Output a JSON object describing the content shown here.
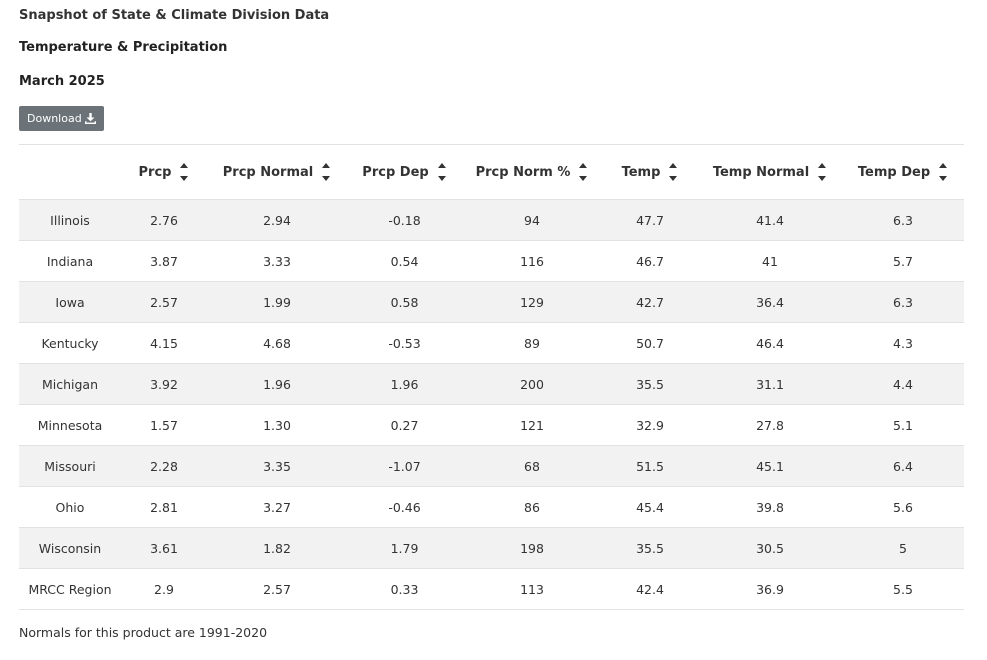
{
  "header": {
    "title": "Snapshot of State & Climate Division Data",
    "subtitle": "Temperature & Precipitation",
    "period": "March 2025"
  },
  "toolbar": {
    "download_label": "Download",
    "download_icon": "download-icon"
  },
  "table": {
    "columns": [
      "",
      "Prcp",
      "Prcp Normal",
      "Prcp Dep",
      "Prcp Norm %",
      "Temp",
      "Temp Normal",
      "Temp Dep"
    ],
    "rows": [
      [
        "Illinois",
        "2.76",
        "2.94",
        "-0.18",
        "94",
        "47.7",
        "41.4",
        "6.3"
      ],
      [
        "Indiana",
        "3.87",
        "3.33",
        "0.54",
        "116",
        "46.7",
        "41",
        "5.7"
      ],
      [
        "Iowa",
        "2.57",
        "1.99",
        "0.58",
        "129",
        "42.7",
        "36.4",
        "6.3"
      ],
      [
        "Kentucky",
        "4.15",
        "4.68",
        "-0.53",
        "89",
        "50.7",
        "46.4",
        "4.3"
      ],
      [
        "Michigan",
        "3.92",
        "1.96",
        "1.96",
        "200",
        "35.5",
        "31.1",
        "4.4"
      ],
      [
        "Minnesota",
        "1.57",
        "1.30",
        "0.27",
        "121",
        "32.9",
        "27.8",
        "5.1"
      ],
      [
        "Missouri",
        "2.28",
        "3.35",
        "-1.07",
        "68",
        "51.5",
        "45.1",
        "6.4"
      ],
      [
        "Ohio",
        "2.81",
        "3.27",
        "-0.46",
        "86",
        "45.4",
        "39.8",
        "5.6"
      ],
      [
        "Wisconsin",
        "3.61",
        "1.82",
        "1.79",
        "198",
        "35.5",
        "30.5",
        "5"
      ],
      [
        "MRCC Region",
        "2.9",
        "2.57",
        "0.33",
        "113",
        "42.4",
        "36.9",
        "5.5"
      ]
    ]
  },
  "footer": {
    "note": "Normals for this product are 1991-2020"
  },
  "colors": {
    "button_bg": "#6b7378",
    "row_stripe": "#f2f2f2",
    "border": "#e2e2e2",
    "text": "#333333"
  }
}
